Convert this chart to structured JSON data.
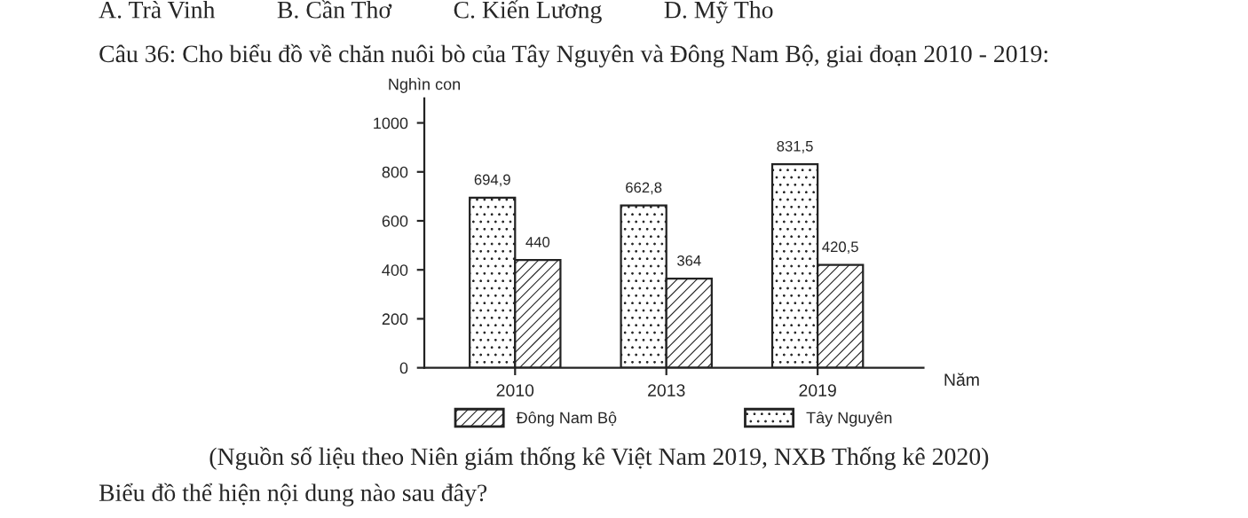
{
  "chart_data": {
    "type": "bar",
    "title": "Câu 36: Cho biểu đồ về chăn nuôi bò của Tây Nguyên và Đông Nam Bộ, giai đoạn 2010 - 2019:",
    "ylabel": "Nghìn con",
    "xlabel": "Năm",
    "categories": [
      "2010",
      "2013",
      "2019"
    ],
    "series": [
      {
        "name": "Tây Nguyên",
        "color": "#222222",
        "values": [
          694.9,
          662.8,
          831.5
        ],
        "value_labels": [
          "694,9",
          "662,8",
          "831,5"
        ]
      },
      {
        "name": "Đông Nam Bộ",
        "color": "#222222",
        "values": [
          440,
          364,
          420.5
        ],
        "value_labels": [
          "440",
          "364",
          "420,5"
        ]
      }
    ],
    "ylim": [
      0,
      1100
    ],
    "yticks": [
      0,
      200,
      400,
      600,
      800,
      1000
    ],
    "grid": false,
    "legend": "bottom",
    "annotations": [
      "A. Trà Vinh          B. Cần Thơ          C. Kiến Lương          D. Mỹ Tho",
      "(Nguồn số liệu theo Niên giám thống kê Việt Nam 2019, NXB Thống kê 2020)",
      "Biểu đồ thể hiện nội dung nào sau đây?"
    ]
  }
}
